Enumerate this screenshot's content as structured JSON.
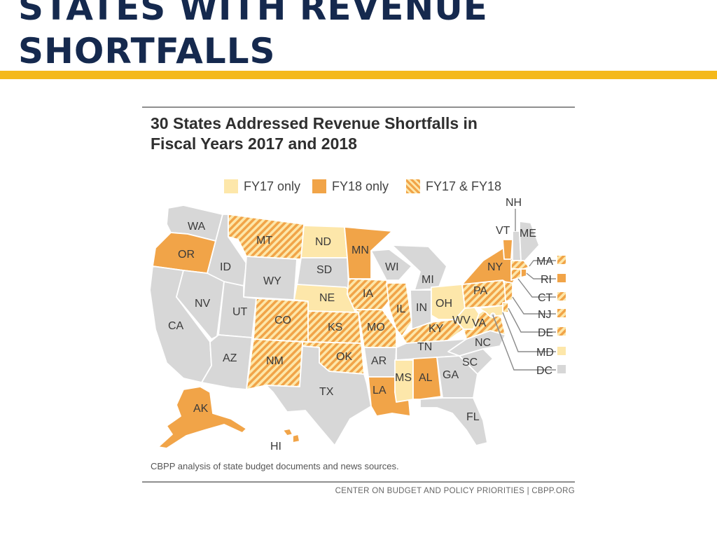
{
  "slide": {
    "title_line1": "STATES WITH REVENUE",
    "title_line2": "SHORTFALLS"
  },
  "figure": {
    "title_line1": "30 States Addressed Revenue Shortfalls in",
    "title_line2": "Fiscal Years 2017 and 2018",
    "source_note": "CBPP analysis of state budget documents and news sources.",
    "credit": "CENTER ON BUDGET AND POLICY PRIORITIES | CBPP.ORG"
  },
  "legend": [
    {
      "key": "fy17",
      "label": "FY17 only"
    },
    {
      "key": "fy18",
      "label": "FY18 only"
    },
    {
      "key": "both",
      "label": "FY17 & FY18"
    }
  ],
  "colors": {
    "fy17": "#fde7aa",
    "fy18": "#f1a448",
    "both_a": "#f1a448",
    "both_b": "#fde7aa",
    "none": "#d7d7d7",
    "title_navy": "#15294e",
    "accent_gold": "#f4b91c"
  },
  "states": {
    "WA": "none",
    "OR": "fy18",
    "CA": "none",
    "ID": "none",
    "NV": "none",
    "MT": "both",
    "WY": "none",
    "UT": "none",
    "AZ": "none",
    "CO": "both",
    "NM": "both",
    "ND": "fy17",
    "SD": "none",
    "NE": "fy17",
    "KS": "both",
    "OK": "both",
    "TX": "none",
    "MN": "fy18",
    "IA": "both",
    "MO": "both",
    "AR": "none",
    "LA": "fy18",
    "WI": "none",
    "IL": "both",
    "MI": "none",
    "IN": "none",
    "OH": "fy17",
    "KY": "both",
    "TN": "none",
    "MS": "fy17",
    "AL": "fy18",
    "GA": "none",
    "FL": "none",
    "SC": "none",
    "NC": "none",
    "WV": "fy17",
    "VA": "both",
    "PA": "both",
    "NY": "fy18",
    "VT": "fy18",
    "NH": "none",
    "ME": "none",
    "AK": "fy18",
    "HI": "fy18",
    "MA": "both",
    "RI": "fy18",
    "CT": "both",
    "NJ": "both",
    "DE": "both",
    "MD": "fy17",
    "DC": "none"
  },
  "labels": {
    "WA": "WA",
    "OR": "OR",
    "CA": "CA",
    "ID": "ID",
    "NV": "NV",
    "MT": "MT",
    "WY": "WY",
    "UT": "UT",
    "AZ": "AZ",
    "CO": "CO",
    "NM": "NM",
    "ND": "ND",
    "SD": "SD",
    "NE": "NE",
    "KS": "KS",
    "OK": "OK",
    "TX": "TX",
    "MN": "MN",
    "IA": "IA",
    "MO": "MO",
    "AR": "AR",
    "LA": "LA",
    "WI": "WI",
    "IL": "IL",
    "MI": "MI",
    "IN": "IN",
    "OH": "OH",
    "KY": "KY",
    "TN": "TN",
    "MS": "MS",
    "AL": "AL",
    "GA": "GA",
    "FL": "FL",
    "SC": "SC",
    "NC": "NC",
    "WV": "WV",
    "VA": "VA",
    "PA": "PA",
    "NY": "NY",
    "VT": "VT",
    "NH": "NH",
    "ME": "ME",
    "AK": "AK",
    "HI": "HI",
    "MA": "MA",
    "RI": "RI",
    "CT": "CT",
    "NJ": "NJ",
    "DE": "DE",
    "MD": "MD",
    "DC": "DC"
  }
}
